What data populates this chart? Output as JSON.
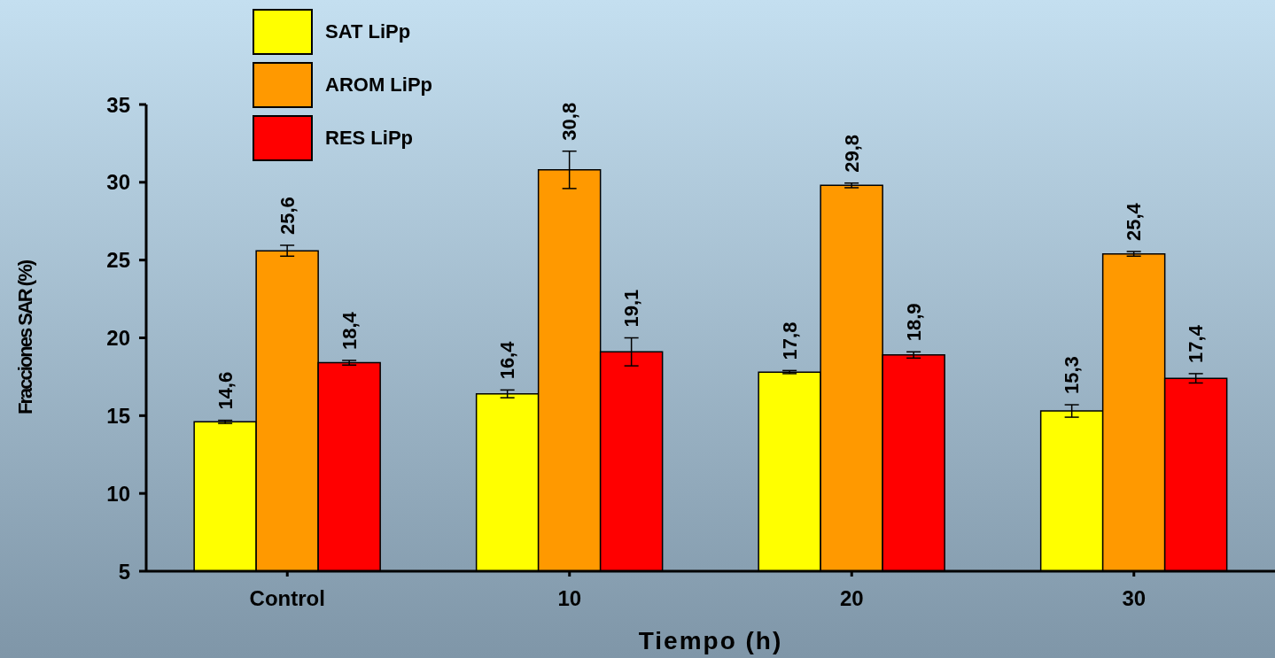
{
  "chart_data": {
    "type": "bar",
    "xlabel": "Tiempo (h)",
    "ylabel": "Fracciones SAR (%)",
    "categories": [
      "Control",
      "10",
      "20",
      "30"
    ],
    "series": [
      {
        "name": "SAT LiPp",
        "color": "#ffff00",
        "values": [
          14.6,
          16.4,
          17.8,
          15.3
        ],
        "errors": [
          0.1,
          0.25,
          0.1,
          0.4
        ],
        "value_labels": [
          "14,6",
          "16,4",
          "17,8",
          "15,3"
        ]
      },
      {
        "name": "AROM LiPp",
        "color": "#ff9900",
        "values": [
          25.6,
          30.8,
          29.8,
          25.4
        ],
        "errors": [
          0.35,
          1.2,
          0.15,
          0.15
        ],
        "value_labels": [
          "25,6",
          "30,8",
          "29,8",
          "25,4"
        ]
      },
      {
        "name": "RES LiPp",
        "color": "#ff0000",
        "values": [
          18.4,
          19.1,
          18.9,
          17.4
        ],
        "errors": [
          0.15,
          0.9,
          0.2,
          0.3
        ],
        "value_labels": [
          "18,4",
          "19,1",
          "18,9",
          "17,4"
        ]
      }
    ],
    "ylim": [
      5,
      35
    ],
    "yticks": [
      5,
      10,
      15,
      20,
      25,
      30,
      35
    ],
    "grid": false,
    "legend": "top left"
  }
}
